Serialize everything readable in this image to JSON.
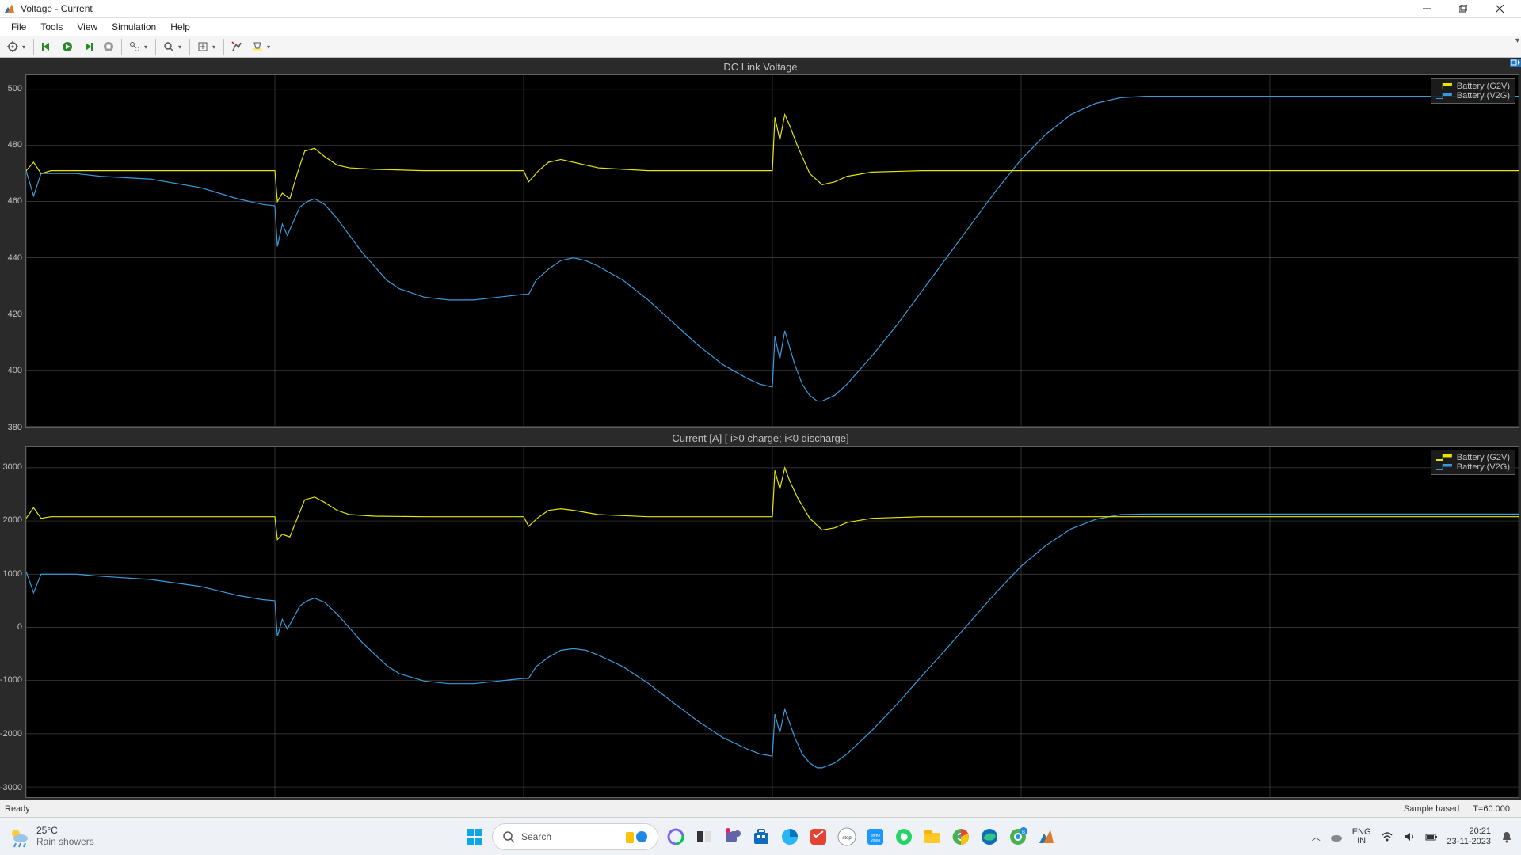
{
  "window": {
    "title": "Voltage - Current",
    "icon_colors": {
      "orange": "#e07b2e",
      "blue": "#2376bc"
    }
  },
  "menus": [
    "File",
    "Tools",
    "View",
    "Simulation",
    "Help"
  ],
  "status": {
    "left": "Ready",
    "mid": "Sample based",
    "right": "T=60.000"
  },
  "scope": {
    "bg": "#2a2a2a",
    "plot_bg": "#000000",
    "grid_color": "#444444",
    "axis_color": "#c0c0c0",
    "series_colors": {
      "g2v": "#e6e600",
      "v2g": "#3a9bdc"
    },
    "xlim": [
      0,
      60
    ],
    "x_grid": [
      0,
      10,
      20,
      30,
      40,
      50,
      60
    ],
    "subplots": [
      {
        "title": "DC Link Voltage",
        "ylim": [
          380,
          505
        ],
        "yticks": [
          380,
          400,
          420,
          440,
          460,
          480,
          500
        ],
        "legend": [
          "Battery (G2V)",
          "Battery (V2G)"
        ],
        "series": {
          "g2v": [
            [
              0,
              471
            ],
            [
              0.3,
              474
            ],
            [
              0.6,
              470
            ],
            [
              1,
              471
            ],
            [
              2,
              471
            ],
            [
              5,
              471
            ],
            [
              8,
              471
            ],
            [
              9.5,
              471
            ],
            [
              10,
              471
            ],
            [
              10.1,
              460
            ],
            [
              10.3,
              463
            ],
            [
              10.6,
              461
            ],
            [
              10.9,
              470
            ],
            [
              11.2,
              478
            ],
            [
              11.6,
              479
            ],
            [
              12.0,
              476
            ],
            [
              12.5,
              473
            ],
            [
              13.0,
              472
            ],
            [
              14,
              471.5
            ],
            [
              16,
              471
            ],
            [
              18,
              471
            ],
            [
              20,
              471
            ],
            [
              20.2,
              467
            ],
            [
              20.6,
              471
            ],
            [
              21.0,
              474
            ],
            [
              21.5,
              475
            ],
            [
              22.0,
              474
            ],
            [
              23.0,
              472
            ],
            [
              25,
              471
            ],
            [
              28,
              471
            ],
            [
              30,
              471
            ],
            [
              30.1,
              490
            ],
            [
              30.3,
              482
            ],
            [
              30.5,
              491
            ],
            [
              30.7,
              487
            ],
            [
              31.0,
              480
            ],
            [
              31.5,
              470
            ],
            [
              32.0,
              466
            ],
            [
              32.5,
              467
            ],
            [
              33.0,
              469
            ],
            [
              34.0,
              470.5
            ],
            [
              36,
              471
            ],
            [
              40,
              471
            ],
            [
              45,
              471
            ],
            [
              50,
              471
            ],
            [
              55,
              471
            ],
            [
              60,
              471
            ]
          ],
          "v2g": [
            [
              0,
              471
            ],
            [
              0.3,
              462
            ],
            [
              0.6,
              470
            ],
            [
              1,
              470
            ],
            [
              2,
              470
            ],
            [
              3,
              469
            ],
            [
              5,
              468
            ],
            [
              7,
              465
            ],
            [
              8.5,
              461
            ],
            [
              9.5,
              459
            ],
            [
              10,
              458.5
            ],
            [
              10.1,
              444
            ],
            [
              10.3,
              452
            ],
            [
              10.5,
              448
            ],
            [
              10.8,
              454
            ],
            [
              11.0,
              458
            ],
            [
              11.3,
              460
            ],
            [
              11.6,
              461
            ],
            [
              12.0,
              459
            ],
            [
              12.5,
              454
            ],
            [
              13.0,
              448
            ],
            [
              13.5,
              442
            ],
            [
              14.0,
              437
            ],
            [
              14.5,
              432
            ],
            [
              15.0,
              429
            ],
            [
              16.0,
              426
            ],
            [
              17.0,
              425
            ],
            [
              18.0,
              425
            ],
            [
              19.0,
              426
            ],
            [
              20.0,
              427
            ],
            [
              20.2,
              427
            ],
            [
              20.5,
              432
            ],
            [
              21.0,
              436
            ],
            [
              21.5,
              439
            ],
            [
              22.0,
              440
            ],
            [
              22.5,
              439
            ],
            [
              23.0,
              437
            ],
            [
              24.0,
              432
            ],
            [
              25.0,
              425
            ],
            [
              26.0,
              417
            ],
            [
              27.0,
              409
            ],
            [
              28.0,
              402
            ],
            [
              29.0,
              397
            ],
            [
              29.5,
              395
            ],
            [
              30.0,
              394
            ],
            [
              30.1,
              412
            ],
            [
              30.3,
              404
            ],
            [
              30.5,
              414
            ],
            [
              30.7,
              408
            ],
            [
              30.9,
              402
            ],
            [
              31.2,
              395
            ],
            [
              31.5,
              391
            ],
            [
              31.8,
              389
            ],
            [
              32.0,
              389
            ],
            [
              32.5,
              391
            ],
            [
              33.0,
              395
            ],
            [
              34.0,
              405
            ],
            [
              35.0,
              416
            ],
            [
              36.0,
              428
            ],
            [
              37.0,
              440
            ],
            [
              38.0,
              452
            ],
            [
              39.0,
              464
            ],
            [
              40.0,
              475
            ],
            [
              41.0,
              484
            ],
            [
              42.0,
              491
            ],
            [
              43.0,
              495
            ],
            [
              44.0,
              497
            ],
            [
              45.0,
              497.5
            ],
            [
              47,
              497.5
            ],
            [
              50,
              497.5
            ],
            [
              55,
              497.5
            ],
            [
              60,
              497.5
            ]
          ]
        }
      },
      {
        "title": "Current [A] [ i>0 charge; i<0 discharge]",
        "ylim": [
          -3200,
          3400
        ],
        "yticks": [
          -3000,
          -2000,
          -1000,
          0,
          1000,
          2000,
          3000
        ],
        "legend": [
          "Battery (G2V)",
          "Battery (V2G)"
        ],
        "series": {
          "g2v": [
            [
              0,
              2050
            ],
            [
              0.3,
              2250
            ],
            [
              0.6,
              2050
            ],
            [
              1,
              2080
            ],
            [
              2,
              2080
            ],
            [
              5,
              2080
            ],
            [
              8,
              2080
            ],
            [
              9.5,
              2080
            ],
            [
              10,
              2080
            ],
            [
              10.1,
              1650
            ],
            [
              10.3,
              1750
            ],
            [
              10.6,
              1700
            ],
            [
              10.9,
              2050
            ],
            [
              11.2,
              2400
            ],
            [
              11.6,
              2450
            ],
            [
              12.0,
              2350
            ],
            [
              12.5,
              2200
            ],
            [
              13.0,
              2120
            ],
            [
              14,
              2090
            ],
            [
              16,
              2080
            ],
            [
              18,
              2080
            ],
            [
              20,
              2080
            ],
            [
              20.2,
              1900
            ],
            [
              20.6,
              2070
            ],
            [
              21.0,
              2200
            ],
            [
              21.5,
              2230
            ],
            [
              22.0,
              2200
            ],
            [
              23.0,
              2120
            ],
            [
              25,
              2080
            ],
            [
              28,
              2080
            ],
            [
              30,
              2080
            ],
            [
              30.1,
              2950
            ],
            [
              30.3,
              2600
            ],
            [
              30.5,
              3000
            ],
            [
              30.7,
              2750
            ],
            [
              31.0,
              2450
            ],
            [
              31.5,
              2050
            ],
            [
              32.0,
              1830
            ],
            [
              32.5,
              1870
            ],
            [
              33.0,
              1970
            ],
            [
              34.0,
              2050
            ],
            [
              36,
              2080
            ],
            [
              40,
              2080
            ],
            [
              45,
              2080
            ],
            [
              50,
              2080
            ],
            [
              55,
              2080
            ],
            [
              60,
              2080
            ]
          ],
          "v2g": [
            [
              0,
              1050
            ],
            [
              0.3,
              650
            ],
            [
              0.6,
              1000
            ],
            [
              1,
              1000
            ],
            [
              2,
              1000
            ],
            [
              3,
              960
            ],
            [
              5,
              900
            ],
            [
              7,
              770
            ],
            [
              8.5,
              600
            ],
            [
              9.5,
              520
            ],
            [
              10,
              500
            ],
            [
              10.1,
              -170
            ],
            [
              10.3,
              150
            ],
            [
              10.5,
              -30
            ],
            [
              10.8,
              220
            ],
            [
              11.0,
              400
            ],
            [
              11.3,
              500
            ],
            [
              11.6,
              550
            ],
            [
              12.0,
              470
            ],
            [
              12.5,
              250
            ],
            [
              13.0,
              -10
            ],
            [
              13.5,
              -280
            ],
            [
              14.0,
              -500
            ],
            [
              14.5,
              -720
            ],
            [
              15.0,
              -870
            ],
            [
              16.0,
              -1010
            ],
            [
              17.0,
              -1060
            ],
            [
              18.0,
              -1060
            ],
            [
              19.0,
              -1010
            ],
            [
              20.0,
              -960
            ],
            [
              20.2,
              -960
            ],
            [
              20.5,
              -740
            ],
            [
              21.0,
              -560
            ],
            [
              21.5,
              -430
            ],
            [
              22.0,
              -400
            ],
            [
              22.5,
              -430
            ],
            [
              23.0,
              -520
            ],
            [
              24.0,
              -740
            ],
            [
              25.0,
              -1050
            ],
            [
              26.0,
              -1410
            ],
            [
              27.0,
              -1760
            ],
            [
              28.0,
              -2070
            ],
            [
              29.0,
              -2290
            ],
            [
              29.5,
              -2380
            ],
            [
              30.0,
              -2420
            ],
            [
              30.1,
              -1630
            ],
            [
              30.3,
              -1980
            ],
            [
              30.5,
              -1540
            ],
            [
              30.7,
              -1800
            ],
            [
              30.9,
              -2070
            ],
            [
              31.2,
              -2380
            ],
            [
              31.5,
              -2550
            ],
            [
              31.8,
              -2640
            ],
            [
              32.0,
              -2640
            ],
            [
              32.5,
              -2550
            ],
            [
              33.0,
              -2380
            ],
            [
              34.0,
              -1940
            ],
            [
              35.0,
              -1450
            ],
            [
              36.0,
              -920
            ],
            [
              37.0,
              -400
            ],
            [
              38.0,
              130
            ],
            [
              39.0,
              660
            ],
            [
              40.0,
              1150
            ],
            [
              41.0,
              1540
            ],
            [
              42.0,
              1850
            ],
            [
              43.0,
              2030
            ],
            [
              44.0,
              2120
            ],
            [
              45.0,
              2130
            ],
            [
              47,
              2130
            ],
            [
              50,
              2130
            ],
            [
              55,
              2130
            ],
            [
              60,
              2130
            ]
          ]
        }
      }
    ]
  },
  "taskbar": {
    "weather": {
      "temp": "25°C",
      "desc": "Rain showers"
    },
    "search_placeholder": "Search",
    "lang1": "ENG",
    "lang2": "IN",
    "time": "20:21",
    "date": "23-11-2023"
  }
}
